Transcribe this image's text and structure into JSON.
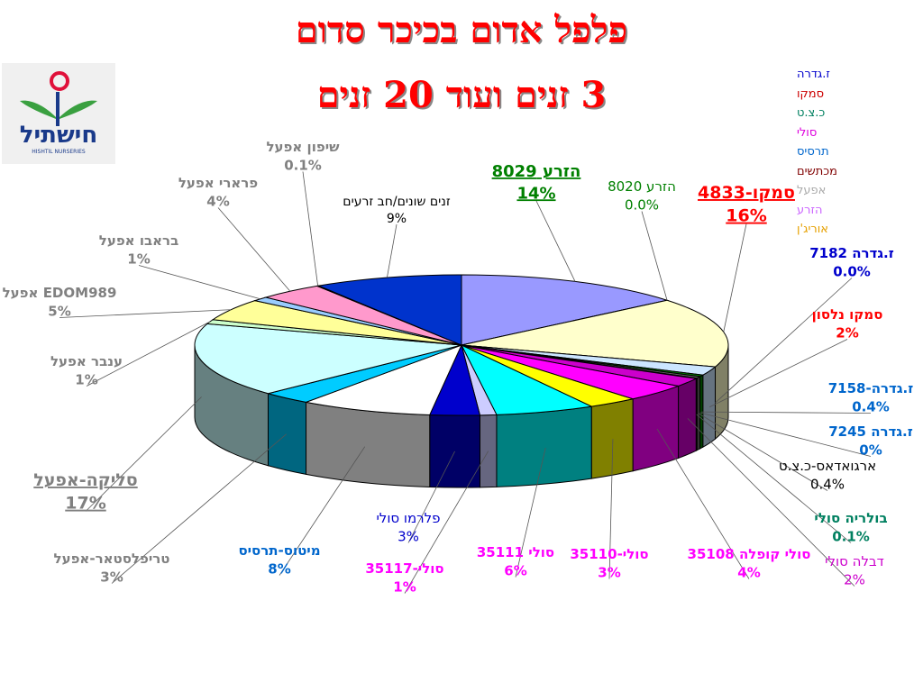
{
  "header": {
    "title_line1": "פלפל אדום בכיכר סדום",
    "title_line2": "3 זנים ועוד 20 זנים"
  },
  "logo": {
    "text": "חישתיל",
    "subtitle": "HISHTIL NURSERIES",
    "icon": "flower-sprout-logo"
  },
  "colors": {
    "title": "#ff0000",
    "title_shadow": "#888888"
  },
  "legend": [
    {
      "label": "ז.גדרה",
      "color": "#0000cc"
    },
    {
      "label": "סמקו",
      "color": "#cc0000"
    },
    {
      "label": "כ.צ.ט",
      "color": "#008060"
    },
    {
      "label": "סולי",
      "color": "#dd00dd"
    },
    {
      "label": "תרסיס",
      "color": "#0066cc"
    },
    {
      "label": "מכתשים",
      "color": "#800000"
    },
    {
      "label": "אפעל",
      "color": "#aaaaaa"
    },
    {
      "label": "הזרע",
      "color": "#cc66ff"
    },
    {
      "label": "אוריג'ן",
      "color": "#e6a000"
    }
  ],
  "chart_data": {
    "type": "pie",
    "title": "פלפל אדום בכיכר סדום",
    "subtitle": "3 זנים ועוד 20 זנים",
    "start_angle_deg": -90,
    "direction": "clockwise",
    "slices": [
      {
        "name": "הזרע 8029",
        "value": 14,
        "label": "14%",
        "color": "#9999ff",
        "label_color": "#008000",
        "underline": true,
        "bold": true
      },
      {
        "name": "הזרע 8020",
        "value": 0.0,
        "label": "0.0%",
        "color": "#993366",
        "label_color": "#008000"
      },
      {
        "name": "סמקו-4833",
        "value": 16,
        "label": "16%",
        "color": "#ffffcc",
        "label_color": "#ff0000",
        "underline": true,
        "bold": true
      },
      {
        "name": "ז.גדרה 7182",
        "value": 0.0,
        "label": "0.0%",
        "color": "#00ff00",
        "label_color": "#0000cc",
        "bold": true
      },
      {
        "name": "סמקו נלסון",
        "value": 2,
        "label": "2%",
        "color": "#cce6ff",
        "label_color": "#ff0000",
        "bold": true
      },
      {
        "name": "ז.גדרה-7158",
        "value": 0.4,
        "label": "0.4%",
        "color": "#008000",
        "label_color": "#0066cc",
        "bold": true
      },
      {
        "name": "ז.גדרה 7245",
        "value": 0,
        "label": "0%",
        "color": "#ccffff",
        "label_color": "#0066cc",
        "bold": true
      },
      {
        "name": "ארגואדאס-כ.צ.ט",
        "value": 0.4,
        "label": "0.4%",
        "color": "#666666",
        "label_color": "#000000"
      },
      {
        "name": "בולריה סולי",
        "value": 0.1,
        "label": "0.1%",
        "color": "#99cc00",
        "label_color": "#008060",
        "bold": true
      },
      {
        "name": "דבלה סולי",
        "value": 2,
        "label": "2%",
        "color": "#cc00cc",
        "label_color": "#cc00cc"
      },
      {
        "name": "סולי קופלה 35108",
        "value": 4,
        "label": "4%",
        "color": "#ff00ff",
        "label_color": "#ff00ff",
        "bold": true
      },
      {
        "name": "סולי-35110",
        "value": 3,
        "label": "3%",
        "color": "#ffff00",
        "label_color": "#ff00ff",
        "bold": true
      },
      {
        "name": "סולי 35111",
        "value": 6,
        "label": "6%",
        "color": "#00ffff",
        "label_color": "#ff00ff",
        "bold": true
      },
      {
        "name": "סולי-35117",
        "value": 1,
        "label": "1%",
        "color": "#ccccff",
        "label_color": "#ff00ff",
        "bold": true
      },
      {
        "name": "פלרמו סולי",
        "value": 3,
        "label": "3%",
        "color": "#0000cc",
        "label_color": "#0000cc"
      },
      {
        "name": "מיטוס-תרסיס",
        "value": 8,
        "label": "8%",
        "color": "#ffffff",
        "label_color": "#0066cc",
        "bold": true
      },
      {
        "name": "טריפלסטאר-אפעל",
        "value": 3,
        "label": "3%",
        "color": "#00ccff",
        "label_color": "#808080",
        "bold": true
      },
      {
        "name": "סליקה-אפעל",
        "value": 17,
        "label": "17%",
        "color": "#ccffff",
        "label_color": "#808080",
        "underline": true,
        "bold": true
      },
      {
        "name": "ענבר אפעל",
        "value": 1,
        "label": "1%",
        "color": "#ccffcc",
        "label_color": "#808080",
        "bold": true
      },
      {
        "name": "EDOM989 אפעל",
        "value": 5,
        "label": "5%",
        "color": "#ffff99",
        "label_color": "#808080",
        "bold": true
      },
      {
        "name": "בראבו אפעל",
        "value": 1,
        "label": "1%",
        "color": "#99ccff",
        "label_color": "#808080",
        "bold": true
      },
      {
        "name": "פרארי אפעל",
        "value": 4,
        "label": "4%",
        "color": "#ff99cc",
        "label_color": "#808080",
        "bold": true
      },
      {
        "name": "שיפון אפעל",
        "value": 0.1,
        "label": "0.1%",
        "color": "#cc99ff",
        "label_color": "#808080",
        "bold": true
      },
      {
        "name": "זנים שונים/חב זרעים",
        "value": 9,
        "label": "9%",
        "color": "#0033cc",
        "label_color": "#000000"
      }
    ]
  }
}
